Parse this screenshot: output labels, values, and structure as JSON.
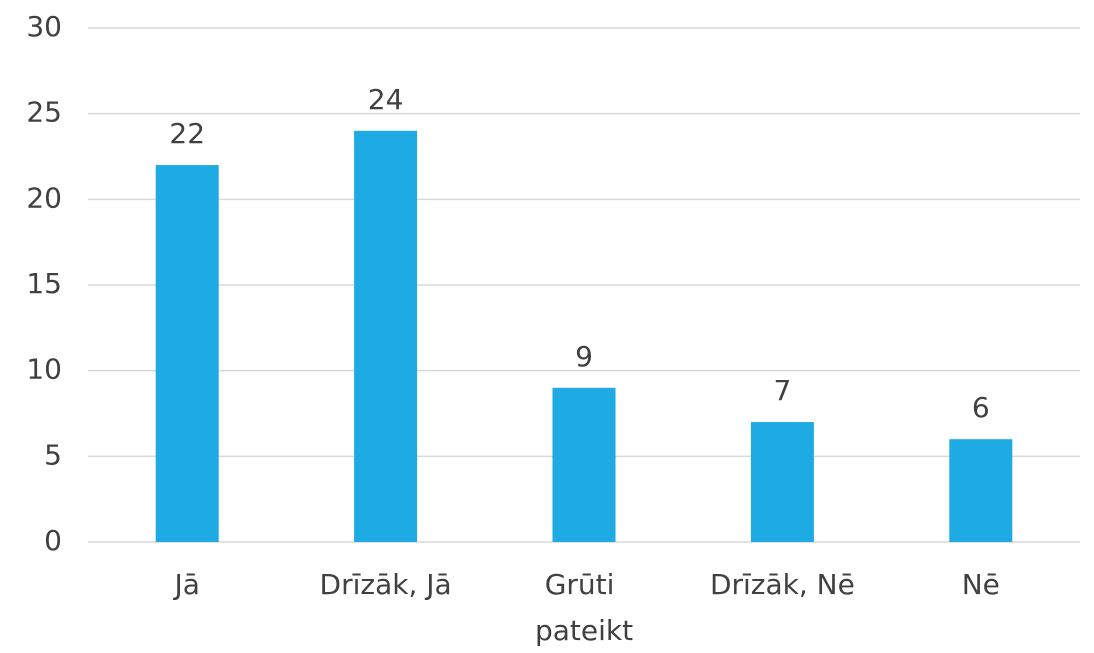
{
  "chart_data": {
    "type": "bar",
    "categories": [
      "Jā",
      "Drīzāk, Jā",
      "Grūti pateikt",
      "Drīzāk, Nē",
      "Nē"
    ],
    "values": [
      22,
      24,
      9,
      7,
      6
    ],
    "color": "#1eaae2",
    "ylim": [
      0,
      30
    ],
    "yticks": [
      0,
      5,
      10,
      15,
      20,
      25,
      30
    ],
    "grid": true
  }
}
